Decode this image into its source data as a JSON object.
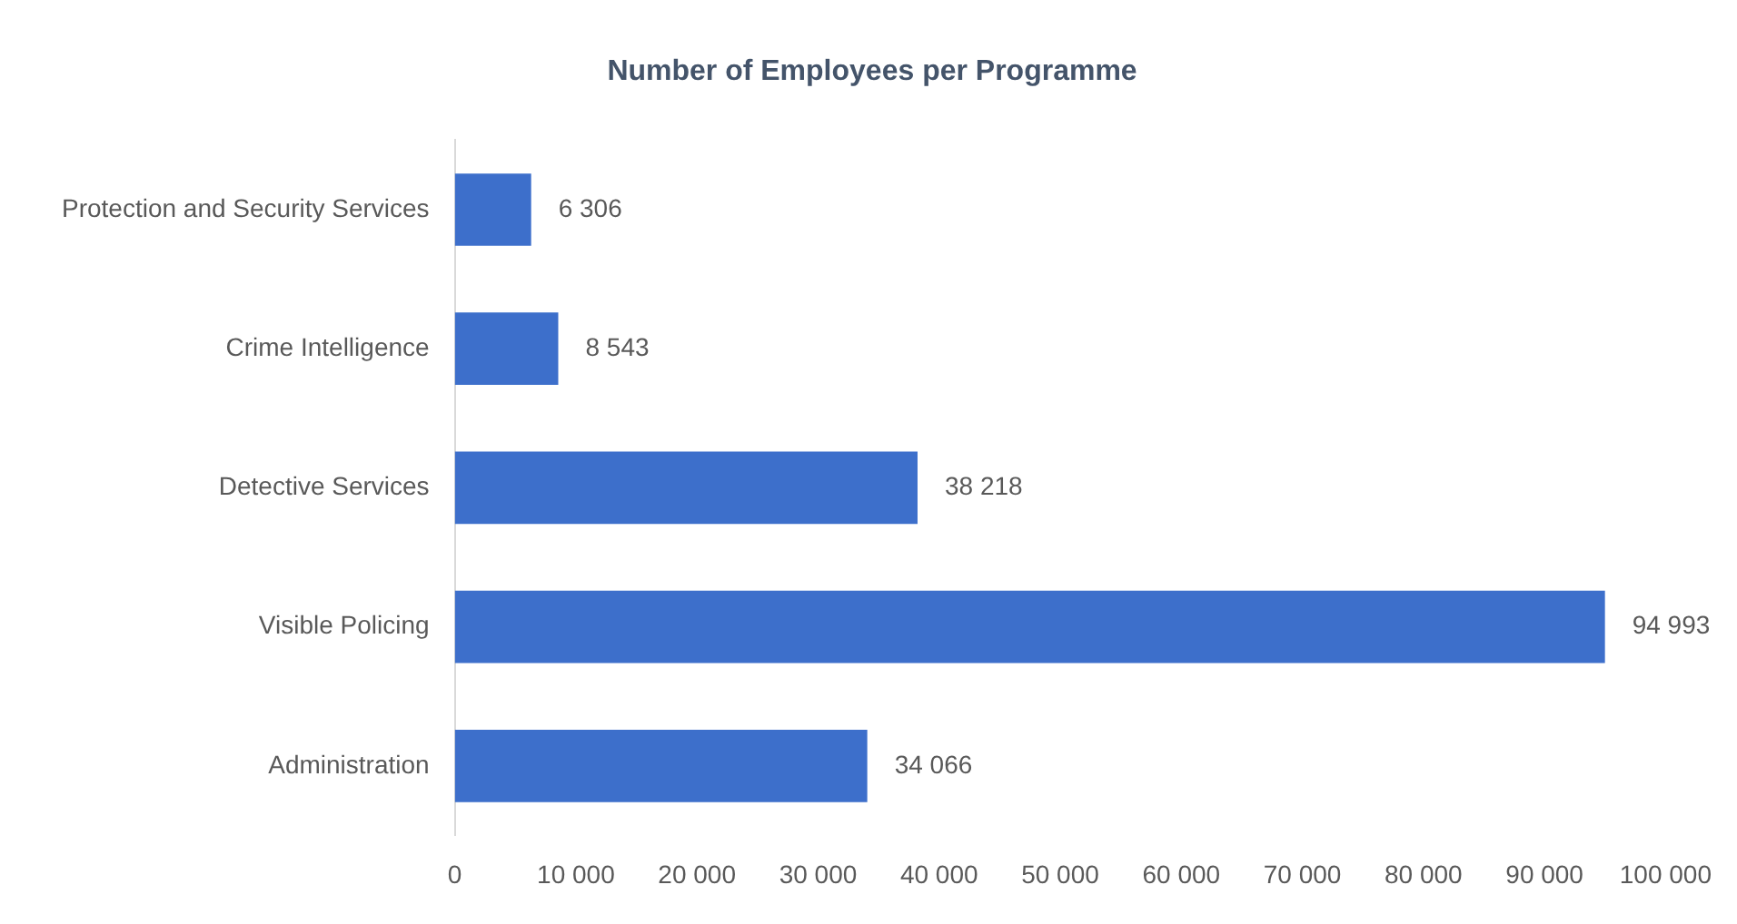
{
  "chart_data": {
    "type": "bar",
    "orientation": "horizontal",
    "title": "Number of Employees per Programme",
    "categories": [
      "Protection and Security Services",
      "Crime Intelligence",
      "Detective Services",
      "Visible Policing",
      "Administration"
    ],
    "values": [
      6306,
      8543,
      38218,
      94993,
      34066
    ],
    "value_labels": [
      "6 306",
      "8 543",
      "38 218",
      "94 993",
      "34 066"
    ],
    "color": "#3d6fcb",
    "xlim": [
      0,
      100000
    ],
    "xticks": [
      {
        "value": 0,
        "label": "0"
      },
      {
        "value": 10000,
        "label": "10 000"
      },
      {
        "value": 20000,
        "label": "20 000"
      },
      {
        "value": 30000,
        "label": "30 000"
      },
      {
        "value": 40000,
        "label": "40 000"
      },
      {
        "value": 50000,
        "label": "50 000"
      },
      {
        "value": 60000,
        "label": "60 000"
      },
      {
        "value": 70000,
        "label": "70 000"
      },
      {
        "value": 80000,
        "label": "80 000"
      },
      {
        "value": 90000,
        "label": "90 000"
      },
      {
        "value": 100000,
        "label": "100 000"
      }
    ],
    "grid": false,
    "legend": false
  }
}
